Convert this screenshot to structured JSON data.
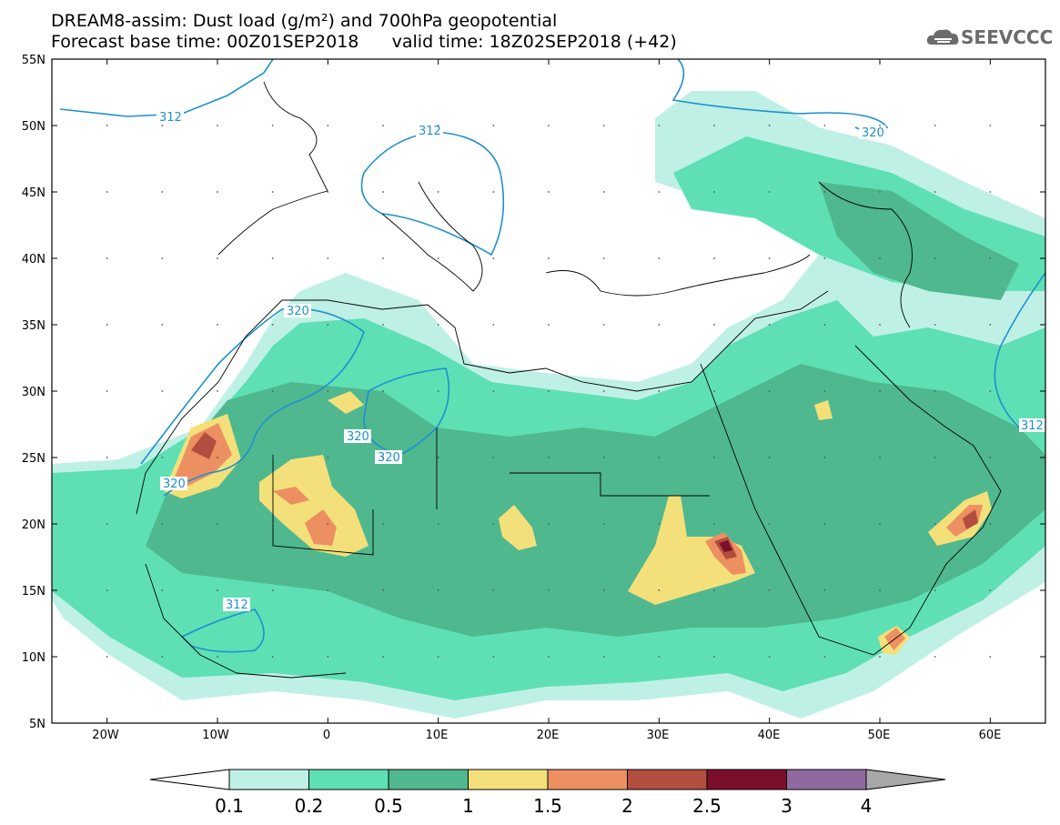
{
  "header": {
    "title_line1": "DREAM8-assim: Dust load (g/m²) and 700hPa geopotential",
    "title_line2": "Forecast base time: 00Z01SEP2018      valid time: 18Z02SEP2018 (+42)"
  },
  "logo": {
    "text": "SEEVCCC",
    "icon": "cloud-icon"
  },
  "map": {
    "projection": "lat-lon",
    "lon_range": [
      -25,
      65
    ],
    "lat_range": [
      5,
      55
    ],
    "lat_labels": [
      "55N",
      "50N",
      "45N",
      "40N",
      "35N",
      "30N",
      "25N",
      "20N",
      "15N",
      "10N",
      "5N"
    ],
    "lon_labels": [
      "20W",
      "10W",
      "0",
      "10E",
      "20E",
      "30E",
      "40E",
      "50E",
      "60E"
    ],
    "contour_labels": [
      "312",
      "312",
      "320",
      "320",
      "320",
      "320",
      "320",
      "312",
      "312"
    ],
    "contour_color": "#1e90d0"
  },
  "colorbar": {
    "colors": [
      "#bff0e6",
      "#5ee0b4",
      "#4fb88f",
      "#f4e07a",
      "#ec9062",
      "#b24e3f",
      "#7a0f2b",
      "#8f6aa0",
      "#a8a8a8"
    ],
    "labels": [
      "0.1",
      "0.2",
      "0.5",
      "1",
      "1.5",
      "2",
      "2.5",
      "3",
      "4"
    ]
  }
}
